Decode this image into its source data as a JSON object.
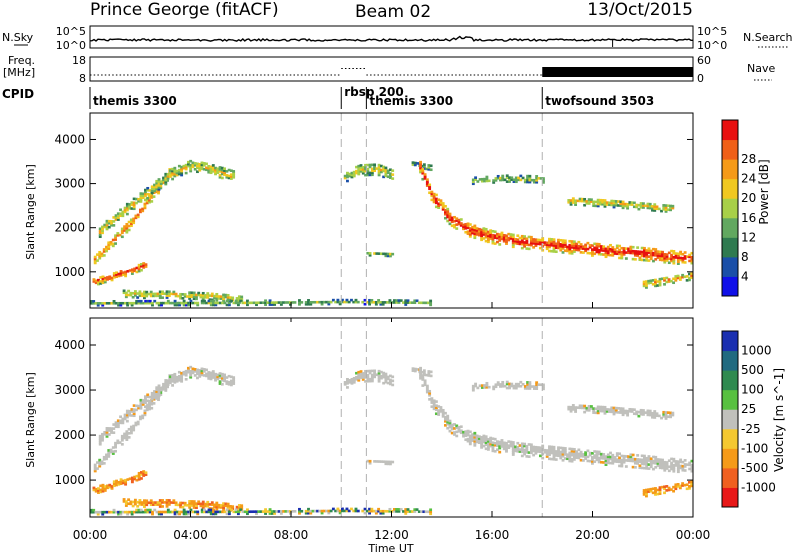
{
  "chart_data": {
    "type": "heatmap",
    "title": "Prince George (fitACF)",
    "beam": "Beam 02",
    "date": "13/Oct/2015",
    "xlabel": "Time UT",
    "x_ticks": [
      "00:00",
      "04:00",
      "08:00",
      "12:00",
      "16:00",
      "20:00",
      "00:00"
    ],
    "xlim_hours": [
      0,
      24
    ],
    "sky_noise": {
      "label": "N.Sky",
      "right_label": "N.Search",
      "yticks_left": [
        "10^5",
        "10^0"
      ],
      "yticks_right": [
        "10^5",
        "10^0"
      ],
      "typical_level_log10": 1.3
    },
    "frequency": {
      "label_line1": "Freq.",
      "label_line2": "[MHz]",
      "right_label": "Nave",
      "yticks_left": [
        "18",
        "8"
      ],
      "yticks_right": [
        "60",
        "0"
      ],
      "segments": [
        {
          "start_h": 0,
          "end_h": 10,
          "freq_mhz": 10.5
        },
        {
          "start_h": 10,
          "end_h": 11,
          "freq_mhz": 13.2
        },
        {
          "start_h": 11,
          "end_h": 18,
          "freq_mhz": 10.5
        },
        {
          "start_h": 18,
          "end_h": 24,
          "freq_mhz": 10.5
        }
      ],
      "nave_fill": {
        "start_h": 18,
        "end_h": 24
      }
    },
    "cpid": {
      "label": "CPID",
      "segments": [
        {
          "name": "themis 3300",
          "start_h": 0
        },
        {
          "name": "rbsp 200",
          "start_h": 10
        },
        {
          "name": "themis 3300",
          "start_h": 11
        },
        {
          "name": "twofsound 3503",
          "start_h": 18
        }
      ]
    },
    "ylabel": "Slant Range [km]",
    "yticks": [
      1000,
      2000,
      3000,
      4000
    ],
    "ylim_km": [
      180,
      4600
    ],
    "power_panel": {
      "colorbar_label": "Power [dB]",
      "colorbar_ticks": [
        "4",
        "8",
        "12",
        "16",
        "20",
        "24",
        "28"
      ],
      "colors": [
        "#1010e8",
        "#1a4fa8",
        "#2f7a50",
        "#62a860",
        "#a8d048",
        "#f0c820",
        "#f59a18",
        "#f06018",
        "#e81010"
      ]
    },
    "velocity_panel": {
      "colorbar_label": "Velocity [m s^-1]",
      "colorbar_ticks": [
        "1000",
        "500",
        "100",
        "25",
        "-25",
        "-100",
        "-500",
        "-1000"
      ],
      "colors": [
        "#1a2fb0",
        "#206a80",
        "#2f8a50",
        "#58c040",
        "#c0c0bc",
        "#f4c830",
        "#f59a18",
        "#f06020",
        "#e81818"
      ]
    },
    "echo_regions": [
      {
        "name": "arc_a_early",
        "t": [
          0.15,
          0.9,
          1.6,
          2.2,
          2.7,
          3.2
        ],
        "r": [
          1250,
          1700,
          2100,
          2550,
          2900,
          3300
        ],
        "w": 220,
        "pw": 0.75,
        "vel": "ground"
      },
      {
        "name": "arc_b_early",
        "t": [
          0.35,
          1.4,
          2.3,
          3.2,
          4.0,
          4.8,
          5.7
        ],
        "r": [
          1900,
          2400,
          2800,
          3200,
          3400,
          3300,
          3150
        ],
        "w": 240,
        "pw": 0.55,
        "vel": "ground"
      },
      {
        "name": "near_range_early",
        "t": [
          0.1,
          0.8,
          1.5,
          2.2
        ],
        "r": [
          760,
          880,
          1000,
          1150
        ],
        "w": 170,
        "pw": 0.85,
        "vel": "away"
      },
      {
        "name": "low_patch_early",
        "t": [
          1.3,
          2.2,
          3.0,
          3.8,
          4.6,
          5.4,
          6.0
        ],
        "r": [
          500,
          470,
          480,
          460,
          440,
          400,
          360
        ],
        "w": 160,
        "pw": 0.55,
        "vel": "away"
      },
      {
        "name": "near_floor_band",
        "t": [
          0.0,
          6.0,
          10.0,
          12.0,
          13.5
        ],
        "r": [
          270,
          280,
          300,
          290,
          280
        ],
        "w": 90,
        "pw": 0.35,
        "vel": "mixed"
      },
      {
        "name": "rbsp_patch",
        "t": [
          10.1,
          10.7,
          11.4,
          12.0
        ],
        "r": [
          3150,
          3300,
          3320,
          3180
        ],
        "w": 260,
        "pw": 0.5,
        "vel": "ground"
      },
      {
        "name": "mid_dots",
        "t": [
          12.8,
          13.6
        ],
        "r": [
          3430,
          3350
        ],
        "w": 120,
        "pw": 0.35,
        "vel": "ground"
      },
      {
        "name": "mid_low_patch",
        "t": [
          11.0,
          12.0
        ],
        "r": [
          1400,
          1380
        ],
        "w": 80,
        "pw": 0.4,
        "vel": "ground"
      },
      {
        "name": "decay_band",
        "t": [
          13.1,
          13.6,
          14.3,
          15.0,
          16.0,
          17.0,
          18.0,
          19.0,
          20.0,
          21.0,
          22.0,
          23.0,
          24.0
        ],
        "r": [
          3350,
          2700,
          2200,
          1950,
          1780,
          1680,
          1620,
          1560,
          1500,
          1450,
          1400,
          1340,
          1280
        ],
        "w": 300,
        "pw": 0.92,
        "vel": "ground"
      },
      {
        "name": "upper_late",
        "t": [
          19.0,
          20.5,
          22.0,
          23.2
        ],
        "r": [
          2600,
          2550,
          2480,
          2420
        ],
        "w": 170,
        "pw": 0.55,
        "vel": "ground"
      },
      {
        "name": "upper_late_2",
        "t": [
          15.2,
          16.6,
          18.0
        ],
        "r": [
          3050,
          3100,
          3080
        ],
        "w": 140,
        "pw": 0.45,
        "vel": "ground"
      },
      {
        "name": "late_near_range",
        "t": [
          22.0,
          23.0,
          24.0
        ],
        "r": [
          700,
          800,
          900
        ],
        "w": 160,
        "pw": 0.65,
        "vel": "away"
      }
    ]
  }
}
